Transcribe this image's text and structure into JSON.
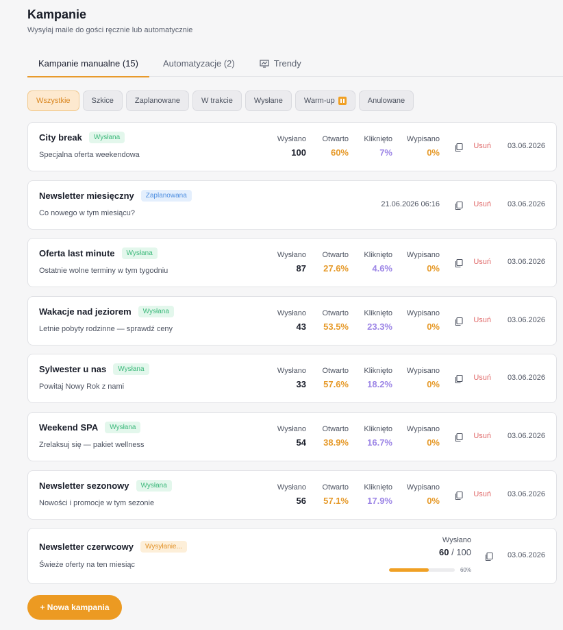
{
  "header": {
    "title": "Kampanie",
    "subtitle": "Wysyłaj maile do gości ręcznie lub automatycznie"
  },
  "tabs": [
    {
      "label": "Kampanie manualne (15)",
      "active": true
    },
    {
      "label": "Automatyzacje (2)",
      "active": false
    },
    {
      "label": "Trendy",
      "active": false,
      "icon": "chart-board-icon"
    }
  ],
  "filters": [
    {
      "label": "Wszystkie",
      "active": true
    },
    {
      "label": "Szkice"
    },
    {
      "label": "Zaplanowane"
    },
    {
      "label": "W trakcie"
    },
    {
      "label": "Wysłane"
    },
    {
      "label": "Warm-up",
      "icon": "pause-icon"
    },
    {
      "label": "Anulowane"
    }
  ],
  "stat_labels": {
    "sent": "Wysłano",
    "opened": "Otwarto",
    "clicked": "Kliknięto",
    "unsubscribed": "Wypisano"
  },
  "delete_label": "Usuń",
  "campaigns": [
    {
      "title": "City break",
      "status": "Wysłana",
      "status_type": "sent",
      "desc": "Specjalna oferta weekendowa",
      "sent": "100",
      "opened": "60%",
      "clicked": "7%",
      "unsubscribed": "0%",
      "date": "03.06.2026"
    },
    {
      "title": "Newsletter miesięczny",
      "status": "Zaplanowana",
      "status_type": "planned",
      "desc": "Co nowego w tym miesiącu?",
      "scheduled": "21.06.2026 06:16",
      "date": "03.06.2026"
    },
    {
      "title": "Oferta last minute",
      "status": "Wysłana",
      "status_type": "sent",
      "desc": "Ostatnie wolne terminy w tym tygodniu",
      "sent": "87",
      "opened": "27.6%",
      "clicked": "4.6%",
      "unsubscribed": "0%",
      "date": "03.06.2026"
    },
    {
      "title": "Wakacje nad jeziorem",
      "status": "Wysłana",
      "status_type": "sent",
      "desc": "Letnie pobyty rodzinne — sprawdź ceny",
      "sent": "43",
      "opened": "53.5%",
      "clicked": "23.3%",
      "unsubscribed": "0%",
      "date": "03.06.2026"
    },
    {
      "title": "Sylwester u nas",
      "status": "Wysłana",
      "status_type": "sent",
      "desc": "Powitaj Nowy Rok z nami",
      "sent": "33",
      "opened": "57.6%",
      "clicked": "18.2%",
      "unsubscribed": "0%",
      "date": "03.06.2026"
    },
    {
      "title": "Weekend SPA",
      "status": "Wysłana",
      "status_type": "sent",
      "desc": "Zrelaksuj się — pakiet wellness",
      "sent": "54",
      "opened": "38.9%",
      "clicked": "16.7%",
      "unsubscribed": "0%",
      "date": "03.06.2026"
    },
    {
      "title": "Newsletter sezonowy",
      "status": "Wysłana",
      "status_type": "sent",
      "desc": "Nowości i promocje w tym sezonie",
      "sent": "56",
      "opened": "57.1%",
      "clicked": "17.9%",
      "unsubscribed": "0%",
      "date": "03.06.2026"
    }
  ],
  "sending_campaign": {
    "title": "Newsletter czerwcowy",
    "status": "Wysyłanie...",
    "desc": "Świeże oferty na ten miesiąc",
    "sent_label": "Wysłano",
    "sent_count": "60",
    "total": "100",
    "progress_fraction": 0.6,
    "progress_label": "60%",
    "date": "03.06.2026"
  },
  "new_campaign_button": "+ Nowa kampania",
  "colors": {
    "accent": "#ec9a22",
    "sent_badge": "#3bb87a",
    "planned_badge": "#4f8fe0",
    "clicked": "#9d86e6",
    "delete": "#e06868"
  }
}
